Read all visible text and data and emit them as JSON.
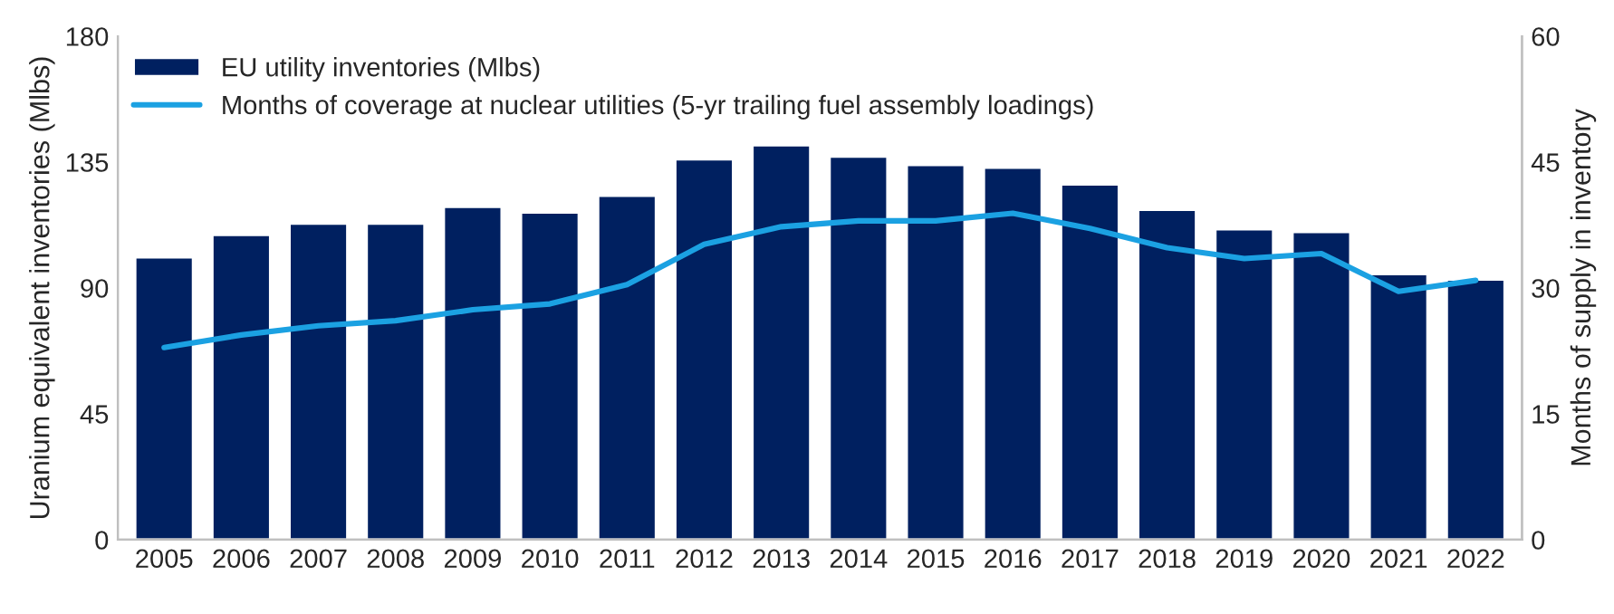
{
  "chart_data": {
    "type": "bar",
    "ylabel": "Uranium equivalent inventories (Mlbs)",
    "y2label": "Months of supply in inventory",
    "categories": [
      "2005",
      "2006",
      "2007",
      "2008",
      "2009",
      "2010",
      "2011",
      "2012",
      "2013",
      "2014",
      "2015",
      "2016",
      "2017",
      "2018",
      "2019",
      "2020",
      "2021",
      "2022"
    ],
    "series": [
      {
        "name": "EU utility inventories (Mlbs)",
        "color": "#002060",
        "values": [
          101,
          109,
          113,
          113,
          119,
          117,
          123,
          136,
          141,
          137,
          134,
          133,
          127,
          118,
          111,
          110,
          95,
          93
        ]
      },
      {
        "name": "Months of coverage at nuclear utilities (5-yr trailing fuel assembly loadings)",
        "type": "line",
        "axis": "y2",
        "color": "#1ba1e2",
        "values": [
          22.9,
          24.4,
          25.5,
          26.1,
          27.4,
          28.1,
          30.4,
          35.2,
          37.3,
          38.0,
          38.0,
          38.9,
          37.1,
          34.8,
          33.5,
          34.1,
          29.6,
          30.9
        ]
      }
    ],
    "ylim": [
      0,
      180
    ],
    "yticks": [
      0,
      45,
      90,
      135,
      180
    ],
    "y2lim": [
      0,
      60
    ],
    "y2ticks": [
      0,
      15,
      30,
      45,
      60
    ],
    "grid": false,
    "legend": "top left",
    "marker": "none",
    "line_style": "solid"
  }
}
